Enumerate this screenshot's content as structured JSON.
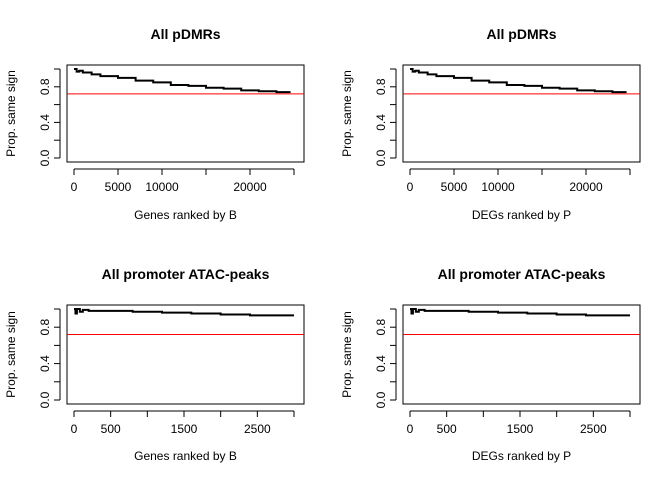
{
  "chart_data": [
    {
      "type": "line",
      "title": "All pDMRs",
      "xlabel": "Genes ranked by B",
      "ylabel": "Prop. same sign",
      "xlim": [
        0,
        25000
      ],
      "ylim": [
        0,
        1
      ],
      "xticks": [
        0,
        5000,
        10000,
        15000,
        20000,
        25000
      ],
      "xtick_labels": [
        "0",
        "5000",
        "10000",
        "",
        "20000",
        ""
      ],
      "yticks": [
        0,
        0.2,
        0.4,
        0.6,
        0.8,
        1.0
      ],
      "ytick_labels": [
        "0.0",
        "",
        "0.4",
        "",
        "0.8",
        ""
      ],
      "reference_line": {
        "y": 0.72,
        "color": "#ff0000"
      },
      "line_color": "#000000",
      "x": [
        0,
        300,
        600,
        1000,
        2000,
        3000,
        5000,
        7000,
        9000,
        11000,
        13000,
        15000,
        17000,
        19000,
        21000,
        23000,
        24500
      ],
      "y": [
        1.0,
        0.97,
        0.98,
        0.96,
        0.94,
        0.92,
        0.9,
        0.87,
        0.85,
        0.82,
        0.81,
        0.79,
        0.78,
        0.76,
        0.75,
        0.74,
        0.73
      ]
    },
    {
      "type": "line",
      "title": "All pDMRs",
      "xlabel": "DEGs ranked by P",
      "ylabel": "Prop. same sign",
      "xlim": [
        0,
        25000
      ],
      "ylim": [
        0,
        1
      ],
      "xticks": [
        0,
        5000,
        10000,
        15000,
        20000,
        25000
      ],
      "xtick_labels": [
        "0",
        "5000",
        "10000",
        "",
        "20000",
        ""
      ],
      "yticks": [
        0,
        0.2,
        0.4,
        0.6,
        0.8,
        1.0
      ],
      "ytick_labels": [
        "0.0",
        "",
        "0.4",
        "",
        "0.8",
        ""
      ],
      "reference_line": {
        "y": 0.72,
        "color": "#ff0000"
      },
      "line_color": "#000000",
      "x": [
        0,
        300,
        600,
        1000,
        2000,
        3000,
        5000,
        7000,
        9000,
        11000,
        13000,
        15000,
        17000,
        19000,
        21000,
        23000,
        24500
      ],
      "y": [
        1.0,
        0.97,
        0.98,
        0.96,
        0.94,
        0.92,
        0.9,
        0.87,
        0.85,
        0.82,
        0.81,
        0.79,
        0.78,
        0.76,
        0.75,
        0.74,
        0.73
      ]
    },
    {
      "type": "line",
      "title": "All promoter ATAC-peaks",
      "xlabel": "Genes ranked by B",
      "ylabel": "Prop. same sign",
      "xlim": [
        0,
        3000
      ],
      "ylim": [
        0,
        1
      ],
      "xticks": [
        0,
        500,
        1000,
        1500,
        2000,
        2500,
        3000
      ],
      "xtick_labels": [
        "0",
        "500",
        "",
        "1500",
        "",
        "2500",
        ""
      ],
      "yticks": [
        0,
        0.2,
        0.4,
        0.6,
        0.8,
        1.0
      ],
      "ytick_labels": [
        "0.0",
        "",
        "0.4",
        "",
        "0.8",
        ""
      ],
      "reference_line": {
        "y": 0.72,
        "color": "#ff0000"
      },
      "line_color": "#000000",
      "x": [
        0,
        20,
        40,
        80,
        120,
        200,
        300,
        500,
        800,
        1200,
        1600,
        2000,
        2400,
        2800,
        3000
      ],
      "y": [
        1.0,
        0.95,
        1.0,
        0.97,
        0.99,
        0.98,
        0.98,
        0.98,
        0.97,
        0.96,
        0.95,
        0.94,
        0.93,
        0.93,
        0.93
      ]
    },
    {
      "type": "line",
      "title": "All promoter ATAC-peaks",
      "xlabel": "DEGs ranked by P",
      "ylabel": "Prop. same sign",
      "xlim": [
        0,
        3000
      ],
      "ylim": [
        0,
        1
      ],
      "xticks": [
        0,
        500,
        1000,
        1500,
        2000,
        2500,
        3000
      ],
      "xtick_labels": [
        "0",
        "500",
        "",
        "1500",
        "",
        "2500",
        ""
      ],
      "yticks": [
        0,
        0.2,
        0.4,
        0.6,
        0.8,
        1.0
      ],
      "ytick_labels": [
        "0.0",
        "",
        "0.4",
        "",
        "0.8",
        ""
      ],
      "reference_line": {
        "y": 0.72,
        "color": "#ff0000"
      },
      "line_color": "#000000",
      "x": [
        0,
        20,
        40,
        80,
        120,
        200,
        300,
        500,
        800,
        1200,
        1600,
        2000,
        2400,
        2800,
        3000
      ],
      "y": [
        1.0,
        0.95,
        1.0,
        0.97,
        0.99,
        0.98,
        0.98,
        0.98,
        0.97,
        0.96,
        0.95,
        0.94,
        0.93,
        0.93,
        0.93
      ]
    }
  ]
}
